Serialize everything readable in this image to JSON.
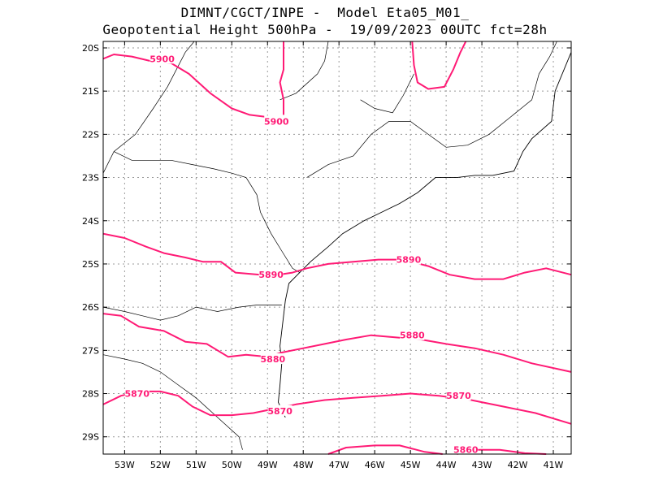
{
  "title": {
    "line1": "DIMNT/CGCT/INPE -  Model Eta05_M01_",
    "line2": "Geopotential Height 500hPa -  19/09/2023 00UTC fct=28h"
  },
  "colors": {
    "contour": "#ff1a75",
    "coast": "#000000",
    "grid": "#9a9a9a"
  },
  "map": {
    "lon_range": [
      -53.6,
      -40.5
    ],
    "lat_range": [
      -29.4,
      -19.85
    ],
    "lat_ticks": [
      {
        "lat": -20,
        "label": "20S"
      },
      {
        "lat": -21,
        "label": "21S"
      },
      {
        "lat": -22,
        "label": "22S"
      },
      {
        "lat": -23,
        "label": "23S"
      },
      {
        "lat": -24,
        "label": "24S"
      },
      {
        "lat": -25,
        "label": "25S"
      },
      {
        "lat": -26,
        "label": "26S"
      },
      {
        "lat": -27,
        "label": "27S"
      },
      {
        "lat": -28,
        "label": "28S"
      },
      {
        "lat": -29,
        "label": "29S"
      }
    ],
    "lon_ticks": [
      {
        "lon": -53,
        "label": "53W"
      },
      {
        "lon": -52,
        "label": "52W"
      },
      {
        "lon": -51,
        "label": "51W"
      },
      {
        "lon": -50,
        "label": "50W"
      },
      {
        "lon": -49,
        "label": "49W"
      },
      {
        "lon": -48,
        "label": "48W"
      },
      {
        "lon": -47,
        "label": "47W"
      },
      {
        "lon": -46,
        "label": "46W"
      },
      {
        "lon": -45,
        "label": "45W"
      },
      {
        "lon": -44,
        "label": "44W"
      },
      {
        "lon": -43,
        "label": "43W"
      },
      {
        "lon": -42,
        "label": "42W"
      },
      {
        "lon": -41,
        "label": "41W"
      }
    ]
  },
  "chart_data": {
    "type": "contour-map",
    "variable": "Geopotential Height 500hPa",
    "contours": [
      {
        "value": 5900,
        "points": [
          [
            -53.6,
            -20.25
          ],
          [
            -53.3,
            -20.15
          ],
          [
            -52.8,
            -20.2
          ],
          [
            -52.3,
            -20.3
          ],
          [
            -51.7,
            -20.35
          ],
          [
            -51.2,
            -20.6
          ],
          [
            -50.6,
            -21.05
          ],
          [
            -50.0,
            -21.4
          ],
          [
            -49.5,
            -21.55
          ],
          [
            -49.0,
            -21.6
          ]
        ]
      },
      {
        "value": 5900,
        "points": [
          [
            -48.55,
            -21.55
          ],
          [
            -48.55,
            -21.2
          ],
          [
            -48.65,
            -20.8
          ],
          [
            -48.55,
            -20.5
          ],
          [
            -48.55,
            -19.85
          ]
        ]
      },
      {
        "value": 5900,
        "points": [
          [
            -44.95,
            -19.85
          ],
          [
            -44.9,
            -20.4
          ],
          [
            -44.8,
            -20.8
          ],
          [
            -44.5,
            -20.95
          ],
          [
            -44.05,
            -20.9
          ],
          [
            -43.8,
            -20.5
          ],
          [
            -43.6,
            -20.1
          ],
          [
            -43.45,
            -19.85
          ]
        ]
      },
      {
        "value": 5890,
        "points": [
          [
            -53.6,
            -24.3
          ],
          [
            -53.0,
            -24.4
          ],
          [
            -52.4,
            -24.6
          ],
          [
            -51.9,
            -24.75
          ],
          [
            -51.3,
            -24.85
          ],
          [
            -50.8,
            -24.95
          ],
          [
            -50.3,
            -24.95
          ],
          [
            -49.9,
            -25.2
          ],
          [
            -49.2,
            -25.25
          ],
          [
            -48.7,
            -25.25
          ],
          [
            -48.3,
            -25.2
          ],
          [
            -47.9,
            -25.1
          ],
          [
            -47.3,
            -25.0
          ],
          [
            -46.6,
            -24.95
          ],
          [
            -45.9,
            -24.9
          ],
          [
            -45.2,
            -24.9
          ],
          [
            -44.5,
            -25.05
          ],
          [
            -43.9,
            -25.25
          ],
          [
            -43.2,
            -25.35
          ],
          [
            -42.4,
            -25.35
          ],
          [
            -41.8,
            -25.2
          ],
          [
            -41.2,
            -25.1
          ],
          [
            -40.5,
            -25.25
          ]
        ]
      },
      {
        "value": 5880,
        "points": [
          [
            -53.6,
            -26.15
          ],
          [
            -53.1,
            -26.2
          ],
          [
            -52.6,
            -26.45
          ],
          [
            -51.9,
            -26.55
          ],
          [
            -51.3,
            -26.8
          ],
          [
            -50.7,
            -26.85
          ],
          [
            -50.1,
            -27.15
          ],
          [
            -49.6,
            -27.1
          ],
          [
            -49.0,
            -27.15
          ],
          [
            -48.6,
            -27.05
          ],
          [
            -48.0,
            -26.95
          ],
          [
            -47.4,
            -26.85
          ],
          [
            -46.8,
            -26.75
          ],
          [
            -46.1,
            -26.65
          ],
          [
            -45.4,
            -26.7
          ],
          [
            -44.7,
            -26.75
          ],
          [
            -44.0,
            -26.85
          ],
          [
            -43.2,
            -26.95
          ],
          [
            -42.4,
            -27.1
          ],
          [
            -41.6,
            -27.3
          ],
          [
            -40.5,
            -27.5
          ]
        ]
      },
      {
        "value": 5870,
        "points": [
          [
            -53.6,
            -28.25
          ],
          [
            -53.1,
            -28.05
          ],
          [
            -52.6,
            -27.95
          ],
          [
            -52.0,
            -27.95
          ],
          [
            -51.5,
            -28.05
          ],
          [
            -51.1,
            -28.3
          ],
          [
            -50.6,
            -28.5
          ],
          [
            -50.0,
            -28.5
          ],
          [
            -49.4,
            -28.45
          ],
          [
            -48.8,
            -28.35
          ],
          [
            -48.2,
            -28.25
          ],
          [
            -47.4,
            -28.15
          ],
          [
            -46.6,
            -28.1
          ],
          [
            -45.8,
            -28.05
          ],
          [
            -45.0,
            -28.0
          ],
          [
            -44.2,
            -28.05
          ],
          [
            -43.3,
            -28.15
          ],
          [
            -42.4,
            -28.3
          ],
          [
            -41.5,
            -28.45
          ],
          [
            -40.5,
            -28.7
          ]
        ]
      },
      {
        "value": 5860,
        "points": [
          [
            -47.3,
            -29.4
          ],
          [
            -46.8,
            -29.25
          ],
          [
            -46.0,
            -29.2
          ],
          [
            -45.3,
            -29.2
          ],
          [
            -44.6,
            -29.35
          ],
          [
            -44.1,
            -29.4
          ]
        ]
      },
      {
        "value": 5860,
        "points": [
          [
            -43.7,
            -29.4
          ],
          [
            -43.2,
            -29.3
          ],
          [
            -42.5,
            -29.3
          ],
          [
            -41.8,
            -29.38
          ],
          [
            -41.2,
            -29.4
          ]
        ]
      }
    ],
    "contour_labels": [
      {
        "text": "5900",
        "lon": -51.95,
        "lat": -20.25
      },
      {
        "text": "5900",
        "lon": -48.75,
        "lat": -21.7
      },
      {
        "text": "5890",
        "lon": -48.9,
        "lat": -25.25
      },
      {
        "text": "5890",
        "lon": -45.05,
        "lat": -24.9
      },
      {
        "text": "5880",
        "lon": -48.85,
        "lat": -27.2
      },
      {
        "text": "5880",
        "lon": -44.95,
        "lat": -26.65
      },
      {
        "text": "5870",
        "lon": -52.65,
        "lat": -28.0
      },
      {
        "text": "5870",
        "lon": -48.65,
        "lat": -28.4
      },
      {
        "text": "5870",
        "lon": -43.65,
        "lat": -28.05
      },
      {
        "text": "5860",
        "lon": -43.45,
        "lat": -29.3
      }
    ],
    "coastline": [
      [
        -48.5,
        -28.55
      ],
      [
        -48.7,
        -28.2
      ],
      [
        -48.65,
        -27.8
      ],
      [
        -48.6,
        -27.3
      ],
      [
        -48.65,
        -26.9
      ],
      [
        -48.55,
        -26.2
      ],
      [
        -48.5,
        -25.85
      ],
      [
        -48.4,
        -25.45
      ],
      [
        -48.1,
        -25.2
      ],
      [
        -47.8,
        -24.95
      ],
      [
        -47.3,
        -24.6
      ],
      [
        -46.9,
        -24.3
      ],
      [
        -46.3,
        -24.0
      ],
      [
        -45.8,
        -23.8
      ],
      [
        -45.3,
        -23.6
      ],
      [
        -44.8,
        -23.35
      ],
      [
        -44.3,
        -23.0
      ],
      [
        -43.7,
        -23.0
      ],
      [
        -43.2,
        -22.95
      ],
      [
        -42.7,
        -22.95
      ],
      [
        -42.1,
        -22.85
      ],
      [
        -41.85,
        -22.4
      ],
      [
        -41.6,
        -22.1
      ],
      [
        -41.05,
        -21.7
      ],
      [
        -40.95,
        -21.0
      ],
      [
        -40.5,
        -20.1
      ]
    ],
    "borders": [
      {
        "points": [
          [
            -53.6,
            -22.9
          ],
          [
            -53.3,
            -22.4
          ],
          [
            -52.7,
            -22.0
          ],
          [
            -52.2,
            -21.4
          ],
          [
            -51.8,
            -20.9
          ],
          [
            -51.3,
            -20.1
          ],
          [
            -51.05,
            -19.85
          ]
        ]
      },
      {
        "points": [
          [
            -53.3,
            -22.4
          ],
          [
            -52.8,
            -22.6
          ],
          [
            -52.2,
            -22.6
          ],
          [
            -51.7,
            -22.6
          ],
          [
            -51.1,
            -22.7
          ],
          [
            -50.5,
            -22.8
          ],
          [
            -50.0,
            -22.9
          ],
          [
            -49.6,
            -23.0
          ],
          [
            -49.3,
            -23.4
          ],
          [
            -49.2,
            -23.8
          ],
          [
            -48.9,
            -24.3
          ],
          [
            -48.6,
            -24.7
          ],
          [
            -48.3,
            -25.1
          ],
          [
            -48.1,
            -25.2
          ]
        ]
      },
      {
        "points": [
          [
            -53.6,
            -26.0
          ],
          [
            -53.0,
            -26.1
          ],
          [
            -52.5,
            -26.2
          ],
          [
            -52.0,
            -26.3
          ],
          [
            -51.5,
            -26.2
          ],
          [
            -51.0,
            -26.0
          ],
          [
            -50.4,
            -26.1
          ],
          [
            -49.8,
            -26.0
          ],
          [
            -49.3,
            -25.95
          ],
          [
            -48.6,
            -25.95
          ]
        ]
      },
      {
        "points": [
          [
            -53.6,
            -27.1
          ],
          [
            -53.0,
            -27.2
          ],
          [
            -52.5,
            -27.3
          ],
          [
            -52.0,
            -27.5
          ],
          [
            -51.5,
            -27.8
          ],
          [
            -51.0,
            -28.1
          ],
          [
            -50.6,
            -28.4
          ],
          [
            -50.2,
            -28.7
          ],
          [
            -49.8,
            -29.0
          ],
          [
            -49.7,
            -29.3
          ]
        ]
      },
      {
        "points": [
          [
            -48.65,
            -21.2
          ],
          [
            -48.2,
            -21.05
          ],
          [
            -47.6,
            -20.6
          ],
          [
            -47.4,
            -20.3
          ],
          [
            -47.3,
            -19.85
          ]
        ]
      },
      {
        "points": [
          [
            -47.9,
            -23.0
          ],
          [
            -47.3,
            -22.7
          ],
          [
            -46.6,
            -22.5
          ],
          [
            -46.1,
            -22.0
          ],
          [
            -45.6,
            -21.7
          ],
          [
            -45.0,
            -21.7
          ],
          [
            -44.5,
            -22.0
          ],
          [
            -44.0,
            -22.3
          ],
          [
            -43.4,
            -22.25
          ],
          [
            -42.8,
            -22.0
          ],
          [
            -42.2,
            -21.6
          ],
          [
            -41.6,
            -21.2
          ]
        ]
      },
      {
        "points": [
          [
            -41.6,
            -21.2
          ],
          [
            -41.4,
            -20.6
          ],
          [
            -41.1,
            -20.2
          ],
          [
            -40.9,
            -19.85
          ]
        ]
      },
      {
        "points": [
          [
            -46.4,
            -21.2
          ],
          [
            -46.0,
            -21.4
          ],
          [
            -45.5,
            -21.5
          ],
          [
            -45.2,
            -21.1
          ],
          [
            -44.9,
            -20.6
          ]
        ]
      }
    ]
  }
}
